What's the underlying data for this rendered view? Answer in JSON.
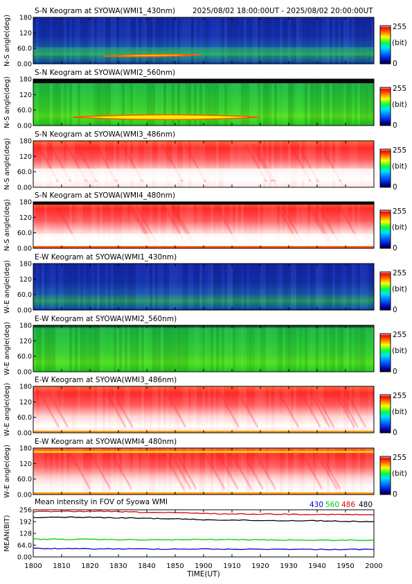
{
  "header": {
    "time_range": "2025/08/02 18:00:00UT - 2025/08/02 20:00:00UT"
  },
  "colorbar": {
    "max_label": "255",
    "unit_label": "(bit)",
    "min_label": "0"
  },
  "keograms": [
    {
      "title": "S-N Keogram at SYOWA(WMI1_430nm)",
      "ylabel": "N-S angle(deg)",
      "yticks": [
        "180",
        "120",
        "60.0",
        "0.00"
      ],
      "colormap": "blue",
      "features": [
        "green band near 30-60 deg",
        "bright arc 18:30-18:55 near 30 deg"
      ]
    },
    {
      "title": "S-N Keogram at SYOWA(WMI2_560nm)",
      "ylabel": "N-S angle(deg)",
      "yticks": [
        "180",
        "120",
        "60.0",
        "0.00"
      ],
      "colormap": "green",
      "features": [
        "bright arc 18:10-19:20 near 30 deg"
      ]
    },
    {
      "title": "S-N Keogram at SYOWA(WMI3_486nm)",
      "ylabel": "N-S angle(deg)",
      "yticks": [
        "180",
        "120",
        "60.0",
        "0.00"
      ],
      "colormap": "red",
      "features": [
        "saturated white near 20-60 deg"
      ]
    },
    {
      "title": "S-N Keogram at SYOWA(WMI4_480nm)",
      "ylabel": "N-S angle(deg)",
      "yticks": [
        "180",
        "120",
        "60.0",
        "0.00"
      ],
      "colormap": "red",
      "features": [
        "saturated white near 0-40 deg"
      ]
    },
    {
      "title": "E-W Keogram at SYOWA(WMI1_430nm)",
      "ylabel": "W-E angle(deg)",
      "yticks": [
        "180",
        "120",
        "60.0",
        "0.00"
      ],
      "colormap": "blue",
      "features": []
    },
    {
      "title": "E-W Keogram at SYOWA(WMI2_560nm)",
      "ylabel": "W-E angle(deg)",
      "yticks": [
        "180",
        "120",
        "60.0",
        "0.00"
      ],
      "colormap": "green",
      "features": []
    },
    {
      "title": "E-W Keogram at SYOWA(WMI3_486nm)",
      "ylabel": "W-E angle(deg)",
      "yticks": [
        "180",
        "120",
        "60.0",
        "0.00"
      ],
      "colormap": "red",
      "features": []
    },
    {
      "title": "E-W Keogram at SYOWA(WMI4_480nm)",
      "ylabel": "W-E angle(deg)",
      "yticks": [
        "180",
        "120",
        "60.0",
        "0.00"
      ],
      "colormap": "red",
      "features": []
    }
  ],
  "chart_data": {
    "type": "line",
    "title": "Mean intensity in FOV of Syowa WMI",
    "ylabel": "MEAN(BIT)",
    "xlabel": "TIME(UT)",
    "ylim": [
      0,
      256
    ],
    "yticks": [
      "256",
      "192",
      "128",
      "64.0",
      "0.00"
    ],
    "x": [
      1800,
      1810,
      1820,
      1830,
      1840,
      1850,
      1900,
      1910,
      1920,
      1930,
      1940,
      1950,
      2000
    ],
    "xticks": [
      "1800",
      "1810",
      "1820",
      "1830",
      "1840",
      "1850",
      "1900",
      "1910",
      "1920",
      "1930",
      "1940",
      "1950",
      "2000"
    ],
    "series": [
      {
        "name": "430",
        "color": "#0000cc",
        "values": [
          46,
          45,
          44,
          44,
          43,
          43,
          43,
          42,
          42,
          42,
          41,
          41,
          41
        ]
      },
      {
        "name": "560",
        "color": "#00cc00",
        "values": [
          97,
          96,
          95,
          94,
          93,
          93,
          95,
          94,
          93,
          92,
          91,
          91,
          91
        ]
      },
      {
        "name": "486",
        "color": "#dd0000",
        "values": [
          245,
          247,
          248,
          246,
          242,
          240,
          236,
          233,
          233,
          232,
          231,
          230,
          229
        ]
      },
      {
        "name": "480",
        "color": "#000000",
        "values": [
          213,
          216,
          215,
          212,
          210,
          207,
          202,
          200,
          198,
          197,
          197,
          193,
          192
        ]
      }
    ],
    "legend_placement": "top-right",
    "grid": false
  }
}
